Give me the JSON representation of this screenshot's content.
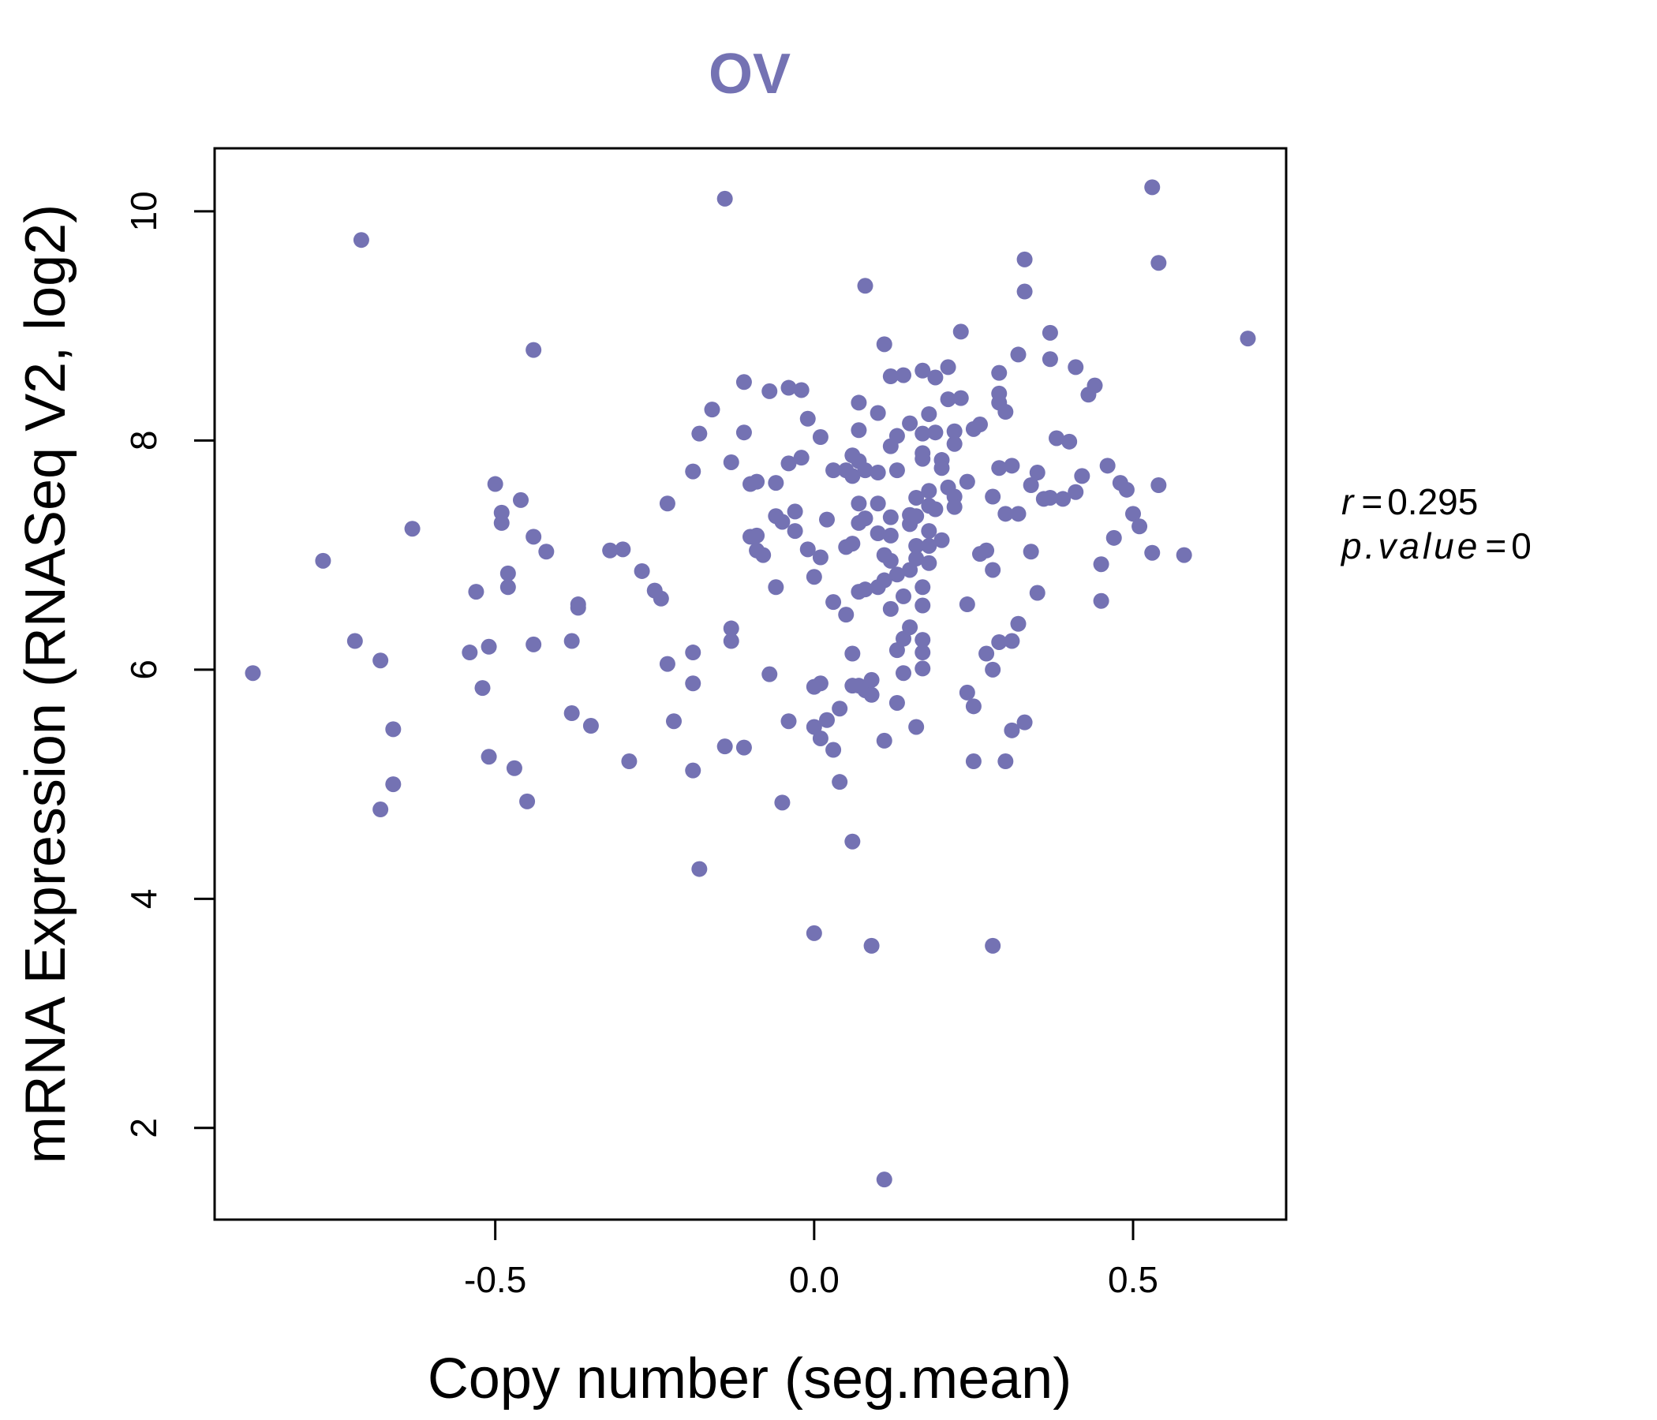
{
  "chart_data": {
    "type": "scatter",
    "title": "OV",
    "xlabel": "Copy number (seg.mean)",
    "ylabel": "mRNA Expression (RNASeq V2, log2)",
    "xlim": [
      -0.94,
      0.74
    ],
    "ylim": [
      1.2,
      10.55
    ],
    "xticks": [
      -0.5,
      0.0,
      0.5
    ],
    "xtick_labels": [
      "-0.5",
      "0.0",
      "0.5"
    ],
    "yticks": [
      2,
      4,
      6,
      8,
      10
    ],
    "ytick_labels": [
      "2",
      "4",
      "6",
      "8",
      "10"
    ],
    "grid": false,
    "legend": "none",
    "point_color": "#7472b3",
    "title_color": "#7472b3",
    "stats": {
      "r_symbol": "r",
      "r_value": "0.295",
      "p_symbol": "p.value",
      "p_value": "0"
    },
    "points": [
      [
        -0.88,
        5.97
      ],
      [
        -0.77,
        6.95
      ],
      [
        -0.72,
        6.25
      ],
      [
        -0.71,
        9.75
      ],
      [
        -0.68,
        6.08
      ],
      [
        -0.68,
        4.78
      ],
      [
        -0.66,
        5.0
      ],
      [
        -0.66,
        5.48
      ],
      [
        -0.63,
        7.23
      ],
      [
        -0.54,
        6.15
      ],
      [
        -0.53,
        6.68
      ],
      [
        -0.52,
        5.84
      ],
      [
        -0.51,
        5.24
      ],
      [
        -0.51,
        6.2
      ],
      [
        -0.5,
        7.62
      ],
      [
        -0.49,
        7.37
      ],
      [
        -0.49,
        7.28
      ],
      [
        -0.48,
        6.72
      ],
      [
        -0.48,
        6.84
      ],
      [
        -0.47,
        5.14
      ],
      [
        -0.46,
        7.48
      ],
      [
        -0.45,
        4.85
      ],
      [
        -0.44,
        6.22
      ],
      [
        -0.44,
        7.16
      ],
      [
        -0.44,
        8.79
      ],
      [
        -0.42,
        7.03
      ],
      [
        -0.38,
        5.62
      ],
      [
        -0.38,
        6.25
      ],
      [
        -0.37,
        6.54
      ],
      [
        -0.37,
        6.57
      ],
      [
        -0.35,
        5.51
      ],
      [
        -0.32,
        7.04
      ],
      [
        -0.3,
        7.05
      ],
      [
        -0.29,
        5.2
      ],
      [
        -0.27,
        6.86
      ],
      [
        -0.25,
        6.69
      ],
      [
        -0.24,
        6.62
      ],
      [
        -0.23,
        7.45
      ],
      [
        -0.23,
        6.05
      ],
      [
        -0.22,
        5.55
      ],
      [
        -0.19,
        5.12
      ],
      [
        -0.19,
        6.15
      ],
      [
        -0.19,
        5.88
      ],
      [
        -0.19,
        7.73
      ],
      [
        -0.18,
        8.06
      ],
      [
        -0.18,
        4.26
      ],
      [
        -0.16,
        8.27
      ],
      [
        -0.14,
        5.33
      ],
      [
        -0.14,
        10.11
      ],
      [
        -0.13,
        6.25
      ],
      [
        -0.13,
        6.36
      ],
      [
        -0.13,
        7.81
      ],
      [
        -0.11,
        8.51
      ],
      [
        -0.11,
        5.32
      ],
      [
        -0.11,
        8.07
      ],
      [
        -0.1,
        7.16
      ],
      [
        -0.1,
        7.62
      ],
      [
        -0.09,
        7.17
      ],
      [
        -0.09,
        7.64
      ],
      [
        -0.09,
        7.04
      ],
      [
        -0.08,
        7.0
      ],
      [
        -0.07,
        8.43
      ],
      [
        -0.07,
        5.96
      ],
      [
        -0.06,
        7.63
      ],
      [
        -0.06,
        6.72
      ],
      [
        -0.06,
        7.34
      ],
      [
        -0.05,
        4.84
      ],
      [
        -0.05,
        7.29
      ],
      [
        -0.04,
        5.55
      ],
      [
        -0.04,
        8.46
      ],
      [
        -0.04,
        7.8
      ],
      [
        -0.03,
        7.21
      ],
      [
        -0.03,
        7.38
      ],
      [
        -0.02,
        7.85
      ],
      [
        -0.02,
        8.44
      ],
      [
        -0.01,
        7.05
      ],
      [
        -0.01,
        8.19
      ],
      [
        0.0,
        5.85
      ],
      [
        0.0,
        5.5
      ],
      [
        0.0,
        3.7
      ],
      [
        0.0,
        6.81
      ],
      [
        0.01,
        5.4
      ],
      [
        0.01,
        5.88
      ],
      [
        0.01,
        6.98
      ],
      [
        0.01,
        8.03
      ],
      [
        0.02,
        7.31
      ],
      [
        0.02,
        5.56
      ],
      [
        0.03,
        6.59
      ],
      [
        0.03,
        7.74
      ],
      [
        0.03,
        5.3
      ],
      [
        0.04,
        5.02
      ],
      [
        0.04,
        5.66
      ],
      [
        0.05,
        7.07
      ],
      [
        0.05,
        6.48
      ],
      [
        0.05,
        7.74
      ],
      [
        0.06,
        7.1
      ],
      [
        0.06,
        7.69
      ],
      [
        0.06,
        4.5
      ],
      [
        0.06,
        7.87
      ],
      [
        0.06,
        5.86
      ],
      [
        0.06,
        6.14
      ],
      [
        0.07,
        7.82
      ],
      [
        0.07,
        8.33
      ],
      [
        0.07,
        8.09
      ],
      [
        0.07,
        5.86
      ],
      [
        0.07,
        6.68
      ],
      [
        0.07,
        7.45
      ],
      [
        0.07,
        7.28
      ],
      [
        0.08,
        6.7
      ],
      [
        0.08,
        7.32
      ],
      [
        0.08,
        7.74
      ],
      [
        0.08,
        9.35
      ],
      [
        0.08,
        5.82
      ],
      [
        0.09,
        5.78
      ],
      [
        0.09,
        5.91
      ],
      [
        0.09,
        3.59
      ],
      [
        0.1,
        7.72
      ],
      [
        0.1,
        7.45
      ],
      [
        0.1,
        8.24
      ],
      [
        0.1,
        6.72
      ],
      [
        0.1,
        7.19
      ],
      [
        0.11,
        1.55
      ],
      [
        0.11,
        5.38
      ],
      [
        0.11,
        7.0
      ],
      [
        0.11,
        8.84
      ],
      [
        0.11,
        6.78
      ],
      [
        0.12,
        7.17
      ],
      [
        0.12,
        6.53
      ],
      [
        0.12,
        7.95
      ],
      [
        0.12,
        8.56
      ],
      [
        0.12,
        6.95
      ],
      [
        0.12,
        7.33
      ],
      [
        0.13,
        8.04
      ],
      [
        0.13,
        6.83
      ],
      [
        0.13,
        5.71
      ],
      [
        0.13,
        6.17
      ],
      [
        0.13,
        7.74
      ],
      [
        0.14,
        8.57
      ],
      [
        0.14,
        6.64
      ],
      [
        0.14,
        6.27
      ],
      [
        0.14,
        5.97
      ],
      [
        0.15,
        6.37
      ],
      [
        0.15,
        7.27
      ],
      [
        0.15,
        6.87
      ],
      [
        0.15,
        8.15
      ],
      [
        0.15,
        7.35
      ],
      [
        0.16,
        7.5
      ],
      [
        0.16,
        6.97
      ],
      [
        0.16,
        5.5
      ],
      [
        0.16,
        7.08
      ],
      [
        0.16,
        7.34
      ],
      [
        0.17,
        6.72
      ],
      [
        0.17,
        7.84
      ],
      [
        0.17,
        6.56
      ],
      [
        0.17,
        7.89
      ],
      [
        0.17,
        8.06
      ],
      [
        0.17,
        8.61
      ],
      [
        0.17,
        6.15
      ],
      [
        0.17,
        6.01
      ],
      [
        0.17,
        6.26
      ],
      [
        0.18,
        7.21
      ],
      [
        0.18,
        8.23
      ],
      [
        0.18,
        7.43
      ],
      [
        0.18,
        7.56
      ],
      [
        0.18,
        6.93
      ],
      [
        0.18,
        7.08
      ],
      [
        0.19,
        8.07
      ],
      [
        0.19,
        8.55
      ],
      [
        0.19,
        7.4
      ],
      [
        0.2,
        7.83
      ],
      [
        0.2,
        7.76
      ],
      [
        0.2,
        7.13
      ],
      [
        0.21,
        8.36
      ],
      [
        0.21,
        8.64
      ],
      [
        0.21,
        7.59
      ],
      [
        0.22,
        7.51
      ],
      [
        0.22,
        8.08
      ],
      [
        0.22,
        7.97
      ],
      [
        0.22,
        7.42
      ],
      [
        0.23,
        8.37
      ],
      [
        0.23,
        8.95
      ],
      [
        0.24,
        7.64
      ],
      [
        0.24,
        5.8
      ],
      [
        0.24,
        6.57
      ],
      [
        0.25,
        5.68
      ],
      [
        0.25,
        5.2
      ],
      [
        0.25,
        8.1
      ],
      [
        0.26,
        8.14
      ],
      [
        0.26,
        7.01
      ],
      [
        0.27,
        6.14
      ],
      [
        0.27,
        7.04
      ],
      [
        0.28,
        6.87
      ],
      [
        0.28,
        3.59
      ],
      [
        0.28,
        7.51
      ],
      [
        0.28,
        6.0
      ],
      [
        0.29,
        7.76
      ],
      [
        0.29,
        8.59
      ],
      [
        0.29,
        8.33
      ],
      [
        0.29,
        8.41
      ],
      [
        0.29,
        6.24
      ],
      [
        0.3,
        8.25
      ],
      [
        0.3,
        5.2
      ],
      [
        0.3,
        7.36
      ],
      [
        0.31,
        7.78
      ],
      [
        0.31,
        5.47
      ],
      [
        0.31,
        6.25
      ],
      [
        0.32,
        6.4
      ],
      [
        0.32,
        7.36
      ],
      [
        0.32,
        8.75
      ],
      [
        0.33,
        9.3
      ],
      [
        0.33,
        5.54
      ],
      [
        0.33,
        9.58
      ],
      [
        0.34,
        7.03
      ],
      [
        0.34,
        7.61
      ],
      [
        0.35,
        6.67
      ],
      [
        0.35,
        7.72
      ],
      [
        0.36,
        7.49
      ],
      [
        0.37,
        7.5
      ],
      [
        0.37,
        8.71
      ],
      [
        0.37,
        8.94
      ],
      [
        0.38,
        8.02
      ],
      [
        0.39,
        7.49
      ],
      [
        0.4,
        7.99
      ],
      [
        0.41,
        7.55
      ],
      [
        0.41,
        8.64
      ],
      [
        0.42,
        7.69
      ],
      [
        0.43,
        8.4
      ],
      [
        0.44,
        8.48
      ],
      [
        0.45,
        6.6
      ],
      [
        0.45,
        6.92
      ],
      [
        0.46,
        7.78
      ],
      [
        0.47,
        7.15
      ],
      [
        0.48,
        7.63
      ],
      [
        0.49,
        7.57
      ],
      [
        0.5,
        7.36
      ],
      [
        0.51,
        7.25
      ],
      [
        0.53,
        10.21
      ],
      [
        0.53,
        7.02
      ],
      [
        0.54,
        9.55
      ],
      [
        0.54,
        7.61
      ],
      [
        0.58,
        7.0
      ],
      [
        0.68,
        8.89
      ]
    ]
  }
}
